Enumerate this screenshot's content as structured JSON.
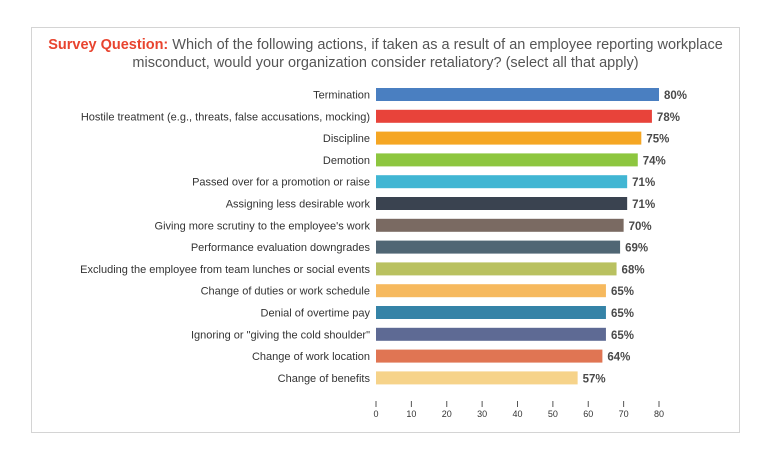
{
  "chart_data": {
    "type": "bar",
    "orientation": "horizontal",
    "title_lead": "Survey Question:",
    "title": "Which of the following actions, if taken as a result of an employee reporting workplace misconduct, would your organization consider retaliatory? (select all that apply)",
    "categories": [
      "Termination",
      "Hostile treatment (e.g., threats, false accusations, mocking)",
      "Discipline",
      "Demotion",
      "Passed over for a promotion or raise",
      "Assigning less desirable work",
      "Giving more scrutiny to the employee's work",
      "Performance evaluation downgrades",
      "Excluding the employee from team lunches or social events",
      "Change of duties or work schedule",
      "Denial of overtime pay",
      "Ignoring or \"giving the cold shoulder\"",
      "Change of work location",
      "Change of benefits"
    ],
    "values": [
      80,
      78,
      75,
      74,
      71,
      71,
      70,
      69,
      68,
      65,
      65,
      65,
      64,
      57
    ],
    "value_labels": [
      "80%",
      "78%",
      "75%",
      "74%",
      "71%",
      "71%",
      "70%",
      "69%",
      "68%",
      "65%",
      "65%",
      "65%",
      "64%",
      "57%"
    ],
    "colors": [
      "#4a7fc1",
      "#e8433a",
      "#f5a623",
      "#8dc63f",
      "#41b6d3",
      "#3a4350",
      "#7a6a62",
      "#506674",
      "#b9c160",
      "#f6b95e",
      "#3583a7",
      "#5e6a94",
      "#e07553",
      "#f6d38a"
    ],
    "xticks": [
      0,
      10,
      20,
      30,
      40,
      50,
      60,
      70,
      80
    ],
    "xlim": [
      0,
      80
    ],
    "grid": false,
    "xlabel": "",
    "ylabel": ""
  }
}
